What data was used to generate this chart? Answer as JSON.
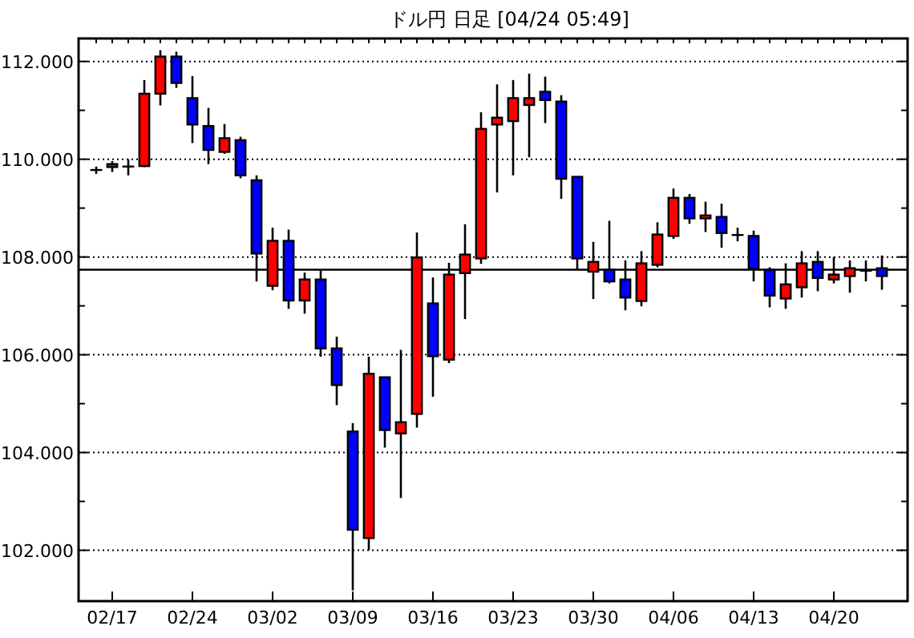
{
  "chart_data": {
    "type": "candlestick",
    "title": "ドル円 日足 [04/24 05:49]",
    "categories": [
      null,
      "02/17",
      null,
      null,
      null,
      null,
      "02/24",
      null,
      null,
      null,
      null,
      "03/02",
      null,
      null,
      null,
      null,
      "03/09",
      null,
      null,
      null,
      null,
      "03/16",
      null,
      null,
      null,
      null,
      "03/23",
      null,
      null,
      null,
      null,
      "03/30",
      null,
      null,
      null,
      null,
      "04/06",
      null,
      null,
      null,
      null,
      "04/13",
      null,
      null,
      null,
      null,
      "04/20",
      null,
      null,
      null
    ],
    "ohlc": [
      [
        109.78,
        109.85,
        109.7,
        109.78
      ],
      [
        109.84,
        109.96,
        109.74,
        109.9
      ],
      [
        109.85,
        110.0,
        109.67,
        109.85
      ],
      [
        109.86,
        111.62,
        109.84,
        111.34
      ],
      [
        111.34,
        112.23,
        111.1,
        112.1
      ],
      [
        112.1,
        112.2,
        111.46,
        111.56
      ],
      [
        111.25,
        111.7,
        110.33,
        110.71
      ],
      [
        110.68,
        111.05,
        109.9,
        110.19
      ],
      [
        110.15,
        110.72,
        110.11,
        110.43
      ],
      [
        110.39,
        110.46,
        109.61,
        109.67
      ],
      [
        109.57,
        109.67,
        107.5,
        108.07
      ],
      [
        107.41,
        108.6,
        107.32,
        108.33
      ],
      [
        108.33,
        108.56,
        106.94,
        107.11
      ],
      [
        107.11,
        107.68,
        106.84,
        107.54
      ],
      [
        107.54,
        107.72,
        105.96,
        106.13
      ],
      [
        106.13,
        106.37,
        104.97,
        105.38
      ],
      [
        104.43,
        104.6,
        101.18,
        102.42
      ],
      [
        102.25,
        105.96,
        102.0,
        105.61
      ],
      [
        105.54,
        105.54,
        104.1,
        104.46
      ],
      [
        104.39,
        106.1,
        103.07,
        104.62
      ],
      [
        104.79,
        108.5,
        104.51,
        107.99
      ],
      [
        107.05,
        107.58,
        105.14,
        105.97
      ],
      [
        105.9,
        107.88,
        105.83,
        107.64
      ],
      [
        107.67,
        108.67,
        106.73,
        108.05
      ],
      [
        107.97,
        110.96,
        107.86,
        110.62
      ],
      [
        110.71,
        111.53,
        109.32,
        110.85
      ],
      [
        110.78,
        111.62,
        109.67,
        111.25
      ],
      [
        111.11,
        111.75,
        110.04,
        111.25
      ],
      [
        111.38,
        111.69,
        110.74,
        111.21
      ],
      [
        111.18,
        111.31,
        109.19,
        109.6
      ],
      [
        109.64,
        109.64,
        107.74,
        107.97
      ],
      [
        107.7,
        108.31,
        107.14,
        107.9
      ],
      [
        107.74,
        108.74,
        107.46,
        107.5
      ],
      [
        107.54,
        107.93,
        106.91,
        107.17
      ],
      [
        107.1,
        108.12,
        106.99,
        107.87
      ],
      [
        107.84,
        108.71,
        107.79,
        108.46
      ],
      [
        108.43,
        109.4,
        108.37,
        109.21
      ],
      [
        109.21,
        109.29,
        108.68,
        108.79
      ],
      [
        108.79,
        109.13,
        108.51,
        108.85
      ],
      [
        108.82,
        109.09,
        108.19,
        108.49
      ],
      [
        108.45,
        108.6,
        108.32,
        108.45
      ],
      [
        108.43,
        108.54,
        107.5,
        107.76
      ],
      [
        107.74,
        107.79,
        106.97,
        107.21
      ],
      [
        107.15,
        107.87,
        106.94,
        107.44
      ],
      [
        107.38,
        108.12,
        107.17,
        107.87
      ],
      [
        107.9,
        108.12,
        107.3,
        107.57
      ],
      [
        107.54,
        108.0,
        107.46,
        107.64
      ],
      [
        107.61,
        107.93,
        107.27,
        107.77
      ],
      [
        107.72,
        107.93,
        107.5,
        107.72
      ],
      [
        107.77,
        108.03,
        107.33,
        107.61
      ]
    ],
    "colors": [
      "#000000",
      "#ff0000",
      "#000000",
      "#ff0000",
      "#ff0000",
      "#0000ff",
      "#0000ff",
      "#0000ff",
      "#ff0000",
      "#0000ff",
      "#0000ff",
      "#ff0000",
      "#0000ff",
      "#ff0000",
      "#0000ff",
      "#0000ff",
      "#0000ff",
      "#ff0000",
      "#0000ff",
      "#ff0000",
      "#ff0000",
      "#0000ff",
      "#ff0000",
      "#ff0000",
      "#ff0000",
      "#ff0000",
      "#ff0000",
      "#ff0000",
      "#0000ff",
      "#0000ff",
      "#0000ff",
      "#ff0000",
      "#0000ff",
      "#0000ff",
      "#ff0000",
      "#ff0000",
      "#ff0000",
      "#0000ff",
      "#ff0000",
      "#0000ff",
      "#000000",
      "#0000ff",
      "#0000ff",
      "#ff0000",
      "#ff0000",
      "#0000ff",
      "#ff0000",
      "#ff0000",
      "#000000",
      "#0000ff"
    ],
    "ylim": [
      100.96,
      112.47
    ],
    "yticks": [
      {
        "value": 102,
        "label": "102.000"
      },
      {
        "value": 103,
        "label": null
      },
      {
        "value": 104,
        "label": "104.000"
      },
      {
        "value": 105,
        "label": null
      },
      {
        "value": 106,
        "label": "106.000"
      },
      {
        "value": 107,
        "label": null
      },
      {
        "value": 108,
        "label": "108.000"
      },
      {
        "value": 109,
        "label": null
      },
      {
        "value": 110,
        "label": "110.000"
      },
      {
        "value": 111,
        "label": null
      },
      {
        "value": 112,
        "label": "112.000"
      }
    ],
    "grid": "y",
    "ref_lines": [
      {
        "axis": "y",
        "value": 107.74,
        "color": "#000000"
      }
    ]
  }
}
